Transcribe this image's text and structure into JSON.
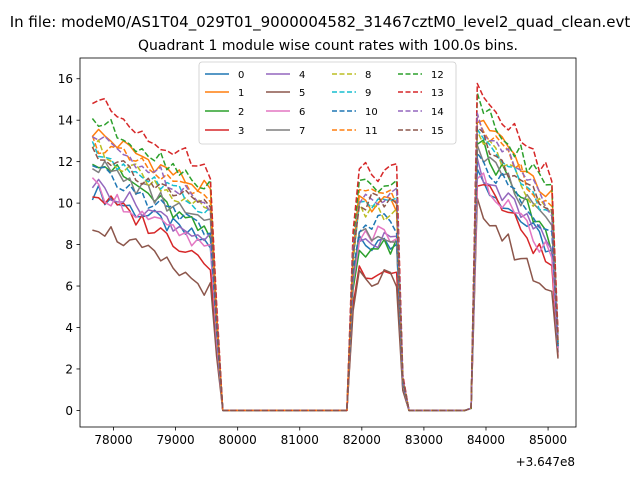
{
  "chart_data": {
    "type": "line",
    "suptitle": "In file: modeM0/AS1T04_029T01_9000004582_31467cztM0_level2_quad_clean.evt",
    "title": "Quadrant 1 module wise count rates with 100.0s bins.",
    "xlabel": "",
    "ylabel": "",
    "x_offset_label": "+3.647e8",
    "xlim": [
      77460,
      85450
    ],
    "ylim": [
      -0.8,
      17
    ],
    "xticks": [
      78000,
      79000,
      80000,
      81000,
      82000,
      83000,
      84000,
      85000
    ],
    "xtick_labels": [
      "78000",
      "79000",
      "80000",
      "81000",
      "82000",
      "83000",
      "84000",
      "85000"
    ],
    "yticks": [
      0,
      2,
      4,
      6,
      8,
      10,
      12,
      14,
      16
    ],
    "ytick_labels": [
      "0",
      "2",
      "4",
      "6",
      "8",
      "10",
      "12",
      "14",
      "16"
    ],
    "grid": false,
    "legend_placement": "top-center",
    "legend_columns": 4,
    "x_segments": [
      {
        "start": 77660,
        "step": 100,
        "n": 20
      },
      {
        "start": 79660,
        "step": 100,
        "n": 22
      },
      {
        "start": 81860,
        "step": 100,
        "n": 8
      },
      {
        "start": 82660,
        "step": 100,
        "n": 12
      },
      {
        "start": 83860,
        "step": 100,
        "n": 14
      }
    ],
    "series": [
      {
        "name": "0",
        "color": "#1f77b4",
        "dashed": false,
        "top": 10.6,
        "flatTop": 8.0,
        "mid": 8.0,
        "end": 2.8
      },
      {
        "name": "1",
        "color": "#ff7f0e",
        "dashed": false,
        "top": 13.5,
        "flatTop": 10.5,
        "mid": 10.0,
        "end": 3.2
      },
      {
        "name": "2",
        "color": "#2ca02c",
        "dashed": false,
        "top": 12.3,
        "flatTop": 8.3,
        "mid": 7.8,
        "end": 3.0
      },
      {
        "name": "3",
        "color": "#d62728",
        "dashed": false,
        "top": 10.5,
        "flatTop": 7.2,
        "mid": 6.8,
        "end": 2.6
      },
      {
        "name": "4",
        "color": "#9467bd",
        "dashed": false,
        "top": 11.0,
        "flatTop": 8.2,
        "mid": 8.2,
        "end": 3.0
      },
      {
        "name": "5",
        "color": "#8c564b",
        "dashed": false,
        "top": 9.1,
        "flatTop": 5.8,
        "mid": 6.4,
        "end": 2.5
      },
      {
        "name": "6",
        "color": "#e377c2",
        "dashed": false,
        "top": 10.8,
        "flatTop": 7.6,
        "mid": 8.4,
        "end": 3.0
      },
      {
        "name": "7",
        "color": "#7f7f7f",
        "dashed": false,
        "top": 12.0,
        "flatTop": 8.8,
        "mid": 8.6,
        "end": 3.1
      },
      {
        "name": "8",
        "color": "#bcbd22",
        "dashed": true,
        "top": 12.8,
        "flatTop": 9.4,
        "mid": 9.5,
        "end": 3.3
      },
      {
        "name": "9",
        "color": "#17becf",
        "dashed": true,
        "top": 12.6,
        "flatTop": 9.6,
        "mid": 9.8,
        "end": 3.3
      },
      {
        "name": "10",
        "color": "#1f77b4",
        "dashed": true,
        "top": 11.6,
        "flatTop": 8.6,
        "mid": 9.0,
        "end": 3.1
      },
      {
        "name": "11",
        "color": "#ff7f0e",
        "dashed": true,
        "top": 13.0,
        "flatTop": 10.0,
        "mid": 10.2,
        "end": 3.4
      },
      {
        "name": "12",
        "color": "#2ca02c",
        "dashed": true,
        "top": 14.1,
        "flatTop": 10.8,
        "mid": 10.8,
        "end": 3.6
      },
      {
        "name": "13",
        "color": "#d62728",
        "dashed": true,
        "top": 15.0,
        "flatTop": 11.5,
        "mid": 11.5,
        "end": 3.8
      },
      {
        "name": "14",
        "color": "#9467bd",
        "dashed": true,
        "top": 13.2,
        "flatTop": 10.0,
        "mid": 10.4,
        "end": 3.4
      },
      {
        "name": "15",
        "color": "#8c564b",
        "dashed": true,
        "top": 12.6,
        "flatTop": 9.6,
        "mid": 10.0,
        "end": 3.2
      }
    ]
  }
}
